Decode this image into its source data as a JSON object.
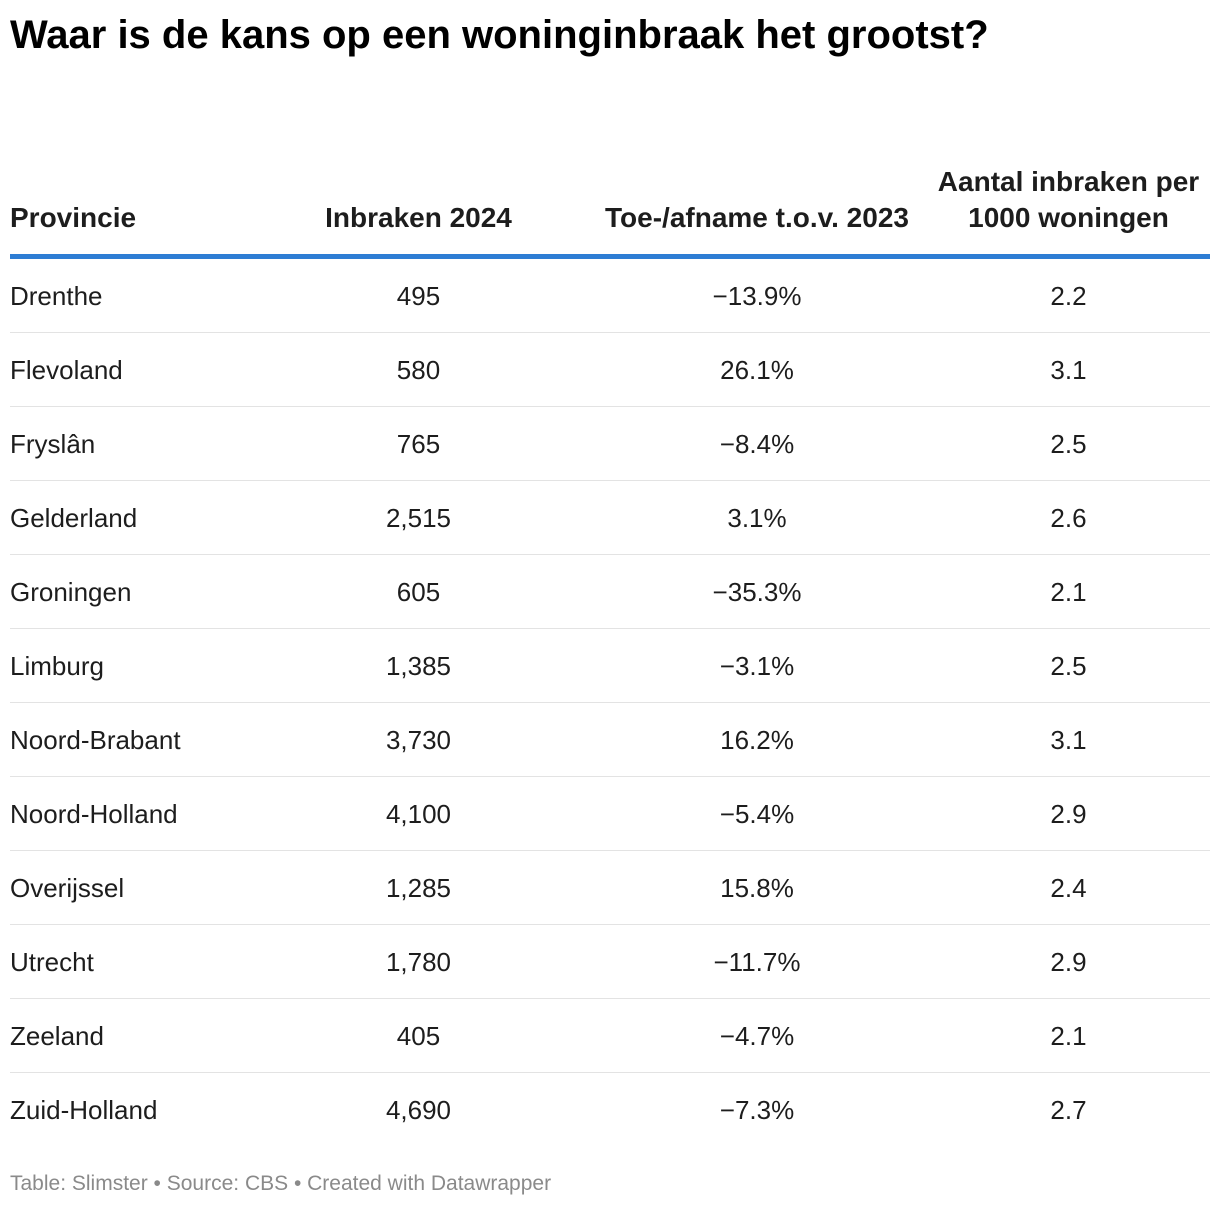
{
  "chart_data": {
    "type": "table",
    "title": "Waar is de kans op een woninginbraak het grootst?",
    "columns": [
      "Provincie",
      "Inbraken 2024",
      "Toe-/afname t.o.v. 2023",
      "Aantal inbraken per 1000 woningen"
    ],
    "rows": [
      [
        "Drenthe",
        "495",
        "−13.9%",
        "2.2"
      ],
      [
        "Flevoland",
        "580",
        "26.1%",
        "3.1"
      ],
      [
        "Fryslân",
        "765",
        "−8.4%",
        "2.5"
      ],
      [
        "Gelderland",
        "2,515",
        "3.1%",
        "2.6"
      ],
      [
        "Groningen",
        "605",
        "−35.3%",
        "2.1"
      ],
      [
        "Limburg",
        "1,385",
        "−3.1%",
        "2.5"
      ],
      [
        "Noord-Brabant",
        "3,730",
        "16.2%",
        "3.1"
      ],
      [
        "Noord-Holland",
        "4,100",
        "−5.4%",
        "2.9"
      ],
      [
        "Overijssel",
        "1,285",
        "15.8%",
        "2.4"
      ],
      [
        "Utrecht",
        "1,780",
        "−11.7%",
        "2.9"
      ],
      [
        "Zeeland",
        "405",
        "−4.7%",
        "2.1"
      ],
      [
        "Zuid-Holland",
        "4,690",
        "−7.3%",
        "2.7"
      ]
    ],
    "footer": "Table: Slimster • Source: CBS • Created with Datawrapper"
  },
  "colors": {
    "header_rule": "#2e7dd4",
    "row_divider": "#e3e3e3",
    "footer_text": "#8a8a8a"
  }
}
